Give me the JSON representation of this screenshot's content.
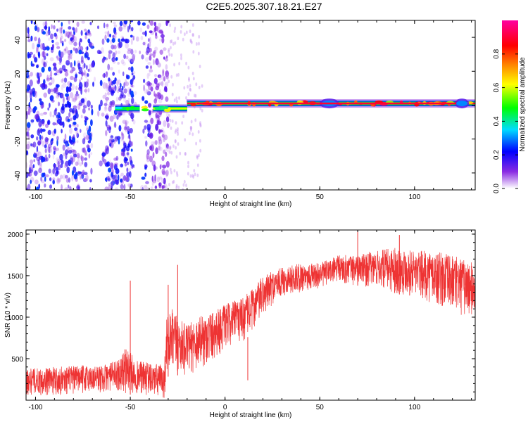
{
  "title": "C2E5.2025.307.18.21.E27",
  "chart_data": [
    {
      "type": "heatmap",
      "title": "C2E5.2025.307.18.21.E27",
      "xlabel": "Height of straight line (km)",
      "ylabel": "Frequency (Hz)",
      "xlim": [
        -105,
        132
      ],
      "ylim": [
        -50,
        50
      ],
      "x_ticks": [
        -100,
        -50,
        0,
        50,
        100
      ],
      "y_ticks": [
        -40,
        -20,
        0,
        20,
        40
      ],
      "colorbar": {
        "label": "Normalized spectral amplitude",
        "range": [
          0,
          1
        ],
        "ticks": [
          "0.0",
          "0.2",
          "0.4",
          "0.6",
          "0.8"
        ],
        "colors": [
          "#ffffff",
          "#8a2be2",
          "#0000ff",
          "#00ffff",
          "#00ff00",
          "#ffff00",
          "#ff8000",
          "#ff0000",
          "#ff00a0"
        ]
      },
      "noise_region_km": [
        -105,
        -30
      ],
      "carrier": {
        "frequency_hz": 0,
        "onset_km": -58,
        "strong_from_km": -20,
        "segments": [
          {
            "x0": -58,
            "x1": -45,
            "amp": 0.45,
            "freq": -2
          },
          {
            "x0": -38,
            "x1": -20,
            "amp": 0.6,
            "freq": -2
          },
          {
            "x0": -20,
            "x1": 132,
            "amp": 0.9,
            "freq": 1
          }
        ]
      },
      "grid": false
    },
    {
      "type": "line",
      "xlabel": "Height of straight line (km)",
      "ylabel": "SNR (10 * v/v)",
      "xlim": [
        -105,
        132
      ],
      "ylim": [
        0,
        2050
      ],
      "x_ticks": [
        -100,
        -50,
        0,
        50,
        100
      ],
      "y_ticks": [
        500,
        1000,
        1500,
        2000
      ],
      "line_color": "#ee3333",
      "envelope": {
        "x": [
          -105,
          -90,
          -75,
          -65,
          -57,
          -52,
          -47,
          -40,
          -32,
          -31,
          -28,
          -25,
          -20,
          -15,
          -10,
          -5,
          0,
          5,
          10,
          15,
          20,
          25,
          30,
          40,
          50,
          60,
          70,
          80,
          90,
          100,
          110,
          120,
          132
        ],
        "lower": [
          50,
          60,
          80,
          80,
          120,
          60,
          80,
          40,
          0,
          300,
          250,
          300,
          300,
          350,
          400,
          500,
          600,
          700,
          700,
          850,
          1000,
          1150,
          1250,
          1300,
          1350,
          1400,
          1380,
          1350,
          1280,
          1250,
          1150,
          1050,
          950
        ],
        "upper": [
          380,
          400,
          420,
          420,
          480,
          650,
          480,
          450,
          430,
          1000,
          1100,
          1000,
          900,
          1000,
          1050,
          1100,
          1150,
          1200,
          1250,
          1350,
          1500,
          1550,
          1600,
          1650,
          1650,
          1750,
          1750,
          1800,
          1850,
          1800,
          1800,
          1750,
          1650
        ]
      },
      "spikes": [
        {
          "x": -50,
          "y": 1440
        },
        {
          "x": -25,
          "y": 1630
        },
        {
          "x": -30,
          "y": 1390
        },
        {
          "x": 70,
          "y": 2050
        },
        {
          "x": 92,
          "y": 1990
        },
        {
          "x": 12,
          "y": 240
        }
      ],
      "grid": false
    }
  ]
}
